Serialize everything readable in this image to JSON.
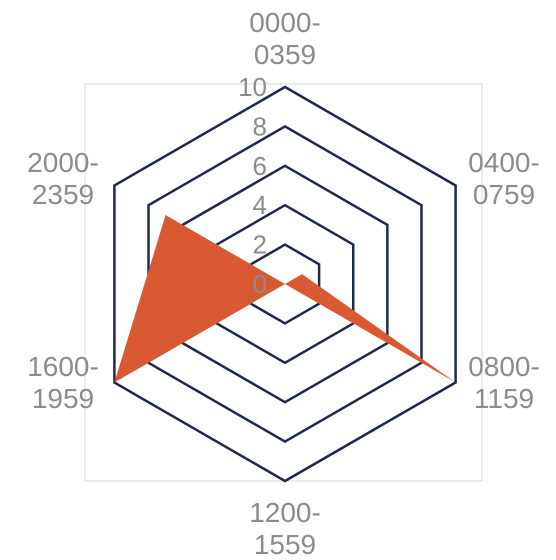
{
  "chart_data": {
    "type": "radar",
    "categories": [
      [
        "0000-",
        "0359"
      ],
      [
        "0400-",
        "0759"
      ],
      [
        "0800-",
        "1159"
      ],
      [
        "1200-",
        "1559"
      ],
      [
        "1600-",
        "1959"
      ],
      [
        "2000-",
        "2359"
      ]
    ],
    "series": [
      {
        "values": [
          0,
          1,
          10,
          0,
          10,
          7
        ]
      }
    ],
    "rlim": [
      0,
      10
    ],
    "ticks": [
      "0",
      "2",
      "4",
      "6",
      "8",
      "10"
    ],
    "grid": true,
    "colors": {
      "fill": "#d95933",
      "grid": "#1e2a4a",
      "frame": "#d9d9d9",
      "text": "#8c8c8c"
    }
  }
}
